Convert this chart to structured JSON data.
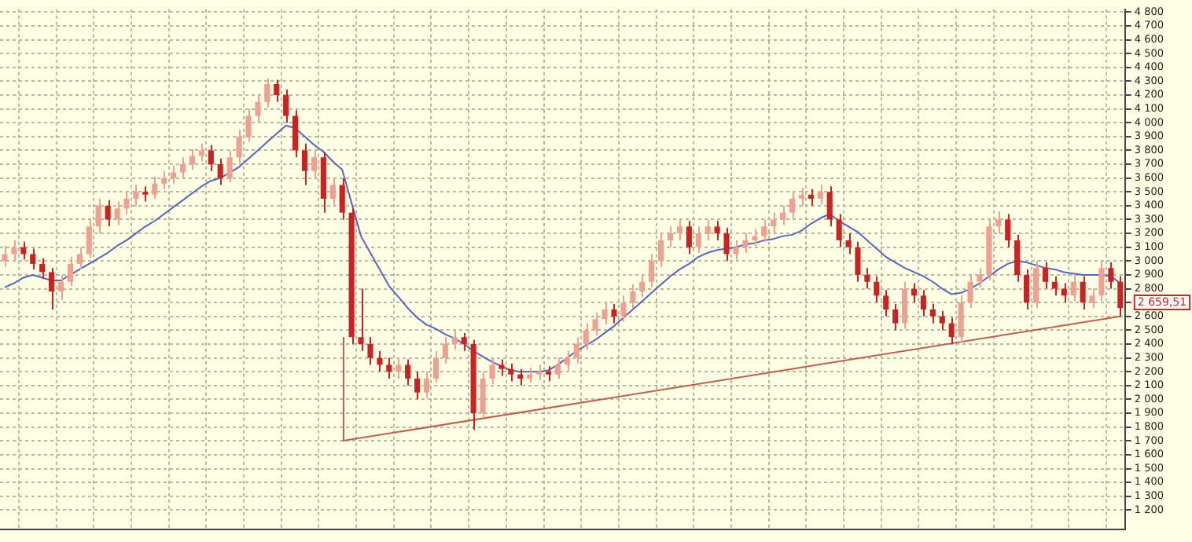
{
  "chart_data": {
    "type": "candlestick",
    "colors": [
      "#f0a090",
      "#f0a090",
      "#cc2222",
      "#cc2222",
      "#cc2222",
      "#cc2222",
      "#f0a090",
      "#f0a090",
      "#f0a090",
      "#f0a090",
      "#f0a090",
      "#cc2222",
      "#f0a090",
      "#f0a090",
      "#f0a090",
      "#cc2222",
      "#f0a090",
      "#f0a090",
      "#f0a090",
      "#f0a090",
      "#f0a090",
      "#f0a090",
      "#cc2222",
      "#cc2222",
      "#f0a090",
      "#f0a090",
      "#f0a090",
      "#f0a090",
      "#f0a090",
      "#cc2222",
      "#cc2222",
      "#cc2222",
      "#cc2222",
      "#f0a090",
      "#cc2222",
      "#f0a090",
      "#cc2222",
      "#cc2222",
      "#cc2222",
      "#cc2222",
      "#cc2222",
      "#cc2222",
      "#f0a090",
      "#cc2222",
      "#cc2222",
      "#f0a090",
      "#f0a090",
      "#f0a090",
      "#f0a090",
      "#cc2222",
      "#cc2222",
      "#f0a090",
      "#f0a090",
      "#cc2222",
      "#cc2222",
      "#cc2222",
      "#f0a090",
      "#f0a090",
      "#cc2222",
      "#f0a090",
      "#f0a090",
      "#f0a090",
      "#f0a090",
      "#f0a090",
      "#f0a090",
      "#cc2222",
      "#f0a090",
      "#f0a090",
      "#f0a090",
      "#f0a090",
      "#f0a090",
      "#f0a090",
      "#f0a090",
      "#cc2222",
      "#f0a090",
      "#f0a090",
      "#cc2222",
      "#cc2222",
      "#f0a090",
      "#f0a090",
      "#f0a090",
      "#f0a090",
      "#f0a090",
      "#f0a090",
      "#f0a090",
      "#f0a090",
      "#cc2222",
      "#f0a090",
      "#cc2222",
      "#cc2222",
      "#cc2222",
      "#cc2222",
      "#cc2222",
      "#cc2222",
      "#cc2222",
      "#cc2222",
      "#f0a090",
      "#cc2222",
      "#cc2222",
      "#cc2222",
      "#cc2222",
      "#cc2222",
      "#f0a090",
      "#f0a090",
      "#f0a090",
      "#f0a090",
      "#f0a090",
      "#cc2222",
      "#cc2222",
      "#cc2222",
      "#f0a090",
      "#cc2222",
      "#cc2222",
      "#cc2222",
      "#f0a090",
      "#cc2222",
      "#f0a090",
      "#f0a090",
      "#cc2222",
      "#cc2222"
    ],
    "categories": [
      null,
      null,
      null,
      null,
      null,
      null,
      null,
      null,
      null,
      null,
      null,
      null,
      null,
      null,
      null,
      null,
      null,
      null,
      null,
      null,
      null,
      null,
      null,
      null,
      null,
      null,
      null,
      null,
      null,
      null,
      null,
      null,
      null,
      null,
      null,
      null,
      null,
      null,
      null,
      null,
      null,
      null,
      null,
      null,
      null,
      null,
      null,
      null,
      null,
      null,
      null,
      null,
      null,
      null,
      null,
      null,
      null,
      null,
      null,
      null,
      null,
      null,
      null,
      null,
      null,
      null,
      null,
      null,
      null,
      null,
      null,
      null,
      null,
      null,
      null,
      null,
      null,
      null,
      null,
      null,
      null,
      null,
      null,
      null,
      null,
      null,
      null,
      null,
      null,
      null,
      null,
      null,
      null,
      null,
      null,
      null,
      null,
      null,
      null,
      null,
      null,
      null,
      null,
      null,
      null,
      null,
      null,
      null,
      null,
      null,
      null,
      null,
      null,
      null,
      null,
      null,
      null,
      null,
      null,
      null
    ],
    "ohlc": [
      [
        3000,
        3110,
        2960,
        3050
      ],
      [
        3050,
        3150,
        3000,
        3100
      ],
      [
        3100,
        3140,
        3010,
        3050
      ],
      [
        3050,
        3090,
        2940,
        2980
      ],
      [
        2980,
        3020,
        2870,
        2920
      ],
      [
        2920,
        2950,
        2650,
        2780
      ],
      [
        2780,
        2900,
        2720,
        2850
      ],
      [
        2850,
        3030,
        2820,
        2980
      ],
      [
        2980,
        3100,
        2940,
        3050
      ],
      [
        3050,
        3300,
        3020,
        3250
      ],
      [
        3250,
        3450,
        3200,
        3400
      ],
      [
        3400,
        3440,
        3250,
        3300
      ],
      [
        3300,
        3430,
        3260,
        3380
      ],
      [
        3380,
        3500,
        3340,
        3450
      ],
      [
        3450,
        3550,
        3400,
        3500
      ],
      [
        3500,
        3540,
        3430,
        3480
      ],
      [
        3480,
        3610,
        3450,
        3560
      ],
      [
        3560,
        3650,
        3520,
        3600
      ],
      [
        3600,
        3690,
        3560,
        3640
      ],
      [
        3640,
        3750,
        3600,
        3700
      ],
      [
        3700,
        3810,
        3660,
        3760
      ],
      [
        3760,
        3850,
        3720,
        3800
      ],
      [
        3800,
        3840,
        3650,
        3700
      ],
      [
        3700,
        3740,
        3550,
        3600
      ],
      [
        3600,
        3800,
        3570,
        3750
      ],
      [
        3750,
        3950,
        3710,
        3900
      ],
      [
        3900,
        4100,
        3860,
        4050
      ],
      [
        4050,
        4200,
        4000,
        4150
      ],
      [
        4150,
        4320,
        4110,
        4280
      ],
      [
        4280,
        4310,
        4150,
        4200
      ],
      [
        4200,
        4240,
        4000,
        4050
      ],
      [
        4050,
        4090,
        3750,
        3800
      ],
      [
        3800,
        3850,
        3550,
        3650
      ],
      [
        3650,
        3800,
        3600,
        3750
      ],
      [
        3750,
        3790,
        3350,
        3450
      ],
      [
        3450,
        3600,
        3400,
        3550
      ],
      [
        3550,
        3600,
        3300,
        3350
      ],
      [
        3350,
        3380,
        2400,
        2450
      ],
      [
        2450,
        2800,
        2350,
        2400
      ],
      [
        2400,
        2450,
        2250,
        2300
      ],
      [
        2300,
        2350,
        2200,
        2250
      ],
      [
        2250,
        2300,
        2150,
        2200
      ],
      [
        2200,
        2300,
        2150,
        2250
      ],
      [
        2250,
        2290,
        2100,
        2150
      ],
      [
        2150,
        2200,
        2000,
        2050
      ],
      [
        2050,
        2200,
        2010,
        2150
      ],
      [
        2150,
        2350,
        2120,
        2300
      ],
      [
        2300,
        2450,
        2260,
        2400
      ],
      [
        2400,
        2500,
        2360,
        2450
      ],
      [
        2450,
        2480,
        2350,
        2400
      ],
      [
        2400,
        2430,
        1780,
        1900
      ],
      [
        1900,
        2200,
        1870,
        2150
      ],
      [
        2150,
        2300,
        2110,
        2250
      ],
      [
        2250,
        2290,
        2170,
        2220
      ],
      [
        2220,
        2260,
        2130,
        2180
      ],
      [
        2180,
        2220,
        2100,
        2150
      ],
      [
        2150,
        2230,
        2120,
        2180
      ],
      [
        2180,
        2250,
        2140,
        2200
      ],
      [
        2200,
        2240,
        2130,
        2180
      ],
      [
        2180,
        2300,
        2150,
        2250
      ],
      [
        2250,
        2350,
        2210,
        2300
      ],
      [
        2300,
        2450,
        2260,
        2400
      ],
      [
        2400,
        2550,
        2360,
        2500
      ],
      [
        2500,
        2630,
        2460,
        2580
      ],
      [
        2580,
        2700,
        2540,
        2650
      ],
      [
        2650,
        2690,
        2550,
        2600
      ],
      [
        2600,
        2750,
        2560,
        2700
      ],
      [
        2700,
        2830,
        2660,
        2780
      ],
      [
        2780,
        2900,
        2740,
        2850
      ],
      [
        2850,
        3050,
        2810,
        3000
      ],
      [
        3000,
        3200,
        2960,
        3150
      ],
      [
        3150,
        3250,
        3100,
        3200
      ],
      [
        3200,
        3300,
        3150,
        3250
      ],
      [
        3250,
        3290,
        3050,
        3100
      ],
      [
        3100,
        3250,
        3060,
        3200
      ],
      [
        3200,
        3300,
        3150,
        3250
      ],
      [
        3250,
        3290,
        3150,
        3200
      ],
      [
        3200,
        3240,
        3000,
        3050
      ],
      [
        3050,
        3150,
        3010,
        3100
      ],
      [
        3100,
        3200,
        3060,
        3150
      ],
      [
        3150,
        3230,
        3110,
        3180
      ],
      [
        3180,
        3300,
        3140,
        3250
      ],
      [
        3250,
        3350,
        3200,
        3300
      ],
      [
        3300,
        3400,
        3260,
        3350
      ],
      [
        3350,
        3500,
        3310,
        3450
      ],
      [
        3450,
        3530,
        3400,
        3480
      ],
      [
        3480,
        3520,
        3400,
        3450
      ],
      [
        3450,
        3550,
        3410,
        3500
      ],
      [
        3500,
        3540,
        3250,
        3300
      ],
      [
        3300,
        3340,
        3100,
        3150
      ],
      [
        3150,
        3200,
        3050,
        3100
      ],
      [
        3100,
        3140,
        2850,
        2900
      ],
      [
        2900,
        2950,
        2800,
        2850
      ],
      [
        2850,
        2890,
        2700,
        2750
      ],
      [
        2750,
        2790,
        2600,
        2650
      ],
      [
        2650,
        2690,
        2500,
        2550
      ],
      [
        2550,
        2850,
        2510,
        2800
      ],
      [
        2800,
        2840,
        2700,
        2750
      ],
      [
        2750,
        2790,
        2600,
        2650
      ],
      [
        2650,
        2690,
        2550,
        2600
      ],
      [
        2600,
        2640,
        2500,
        2550
      ],
      [
        2550,
        2590,
        2400,
        2450
      ],
      [
        2450,
        2750,
        2410,
        2700
      ],
      [
        2700,
        2900,
        2660,
        2850
      ],
      [
        2850,
        2950,
        2810,
        2900
      ],
      [
        2900,
        3300,
        2860,
        3250
      ],
      [
        3250,
        3360,
        3200,
        3300
      ],
      [
        3300,
        3340,
        3100,
        3150
      ],
      [
        3150,
        3190,
        2850,
        2900
      ],
      [
        2900,
        2940,
        2650,
        2700
      ],
      [
        2700,
        3000,
        2660,
        2950
      ],
      [
        2950,
        2990,
        2800,
        2850
      ],
      [
        2850,
        2890,
        2750,
        2800
      ],
      [
        2800,
        2840,
        2700,
        2750
      ],
      [
        2750,
        2900,
        2710,
        2850
      ],
      [
        2850,
        2890,
        2650,
        2700
      ],
      [
        2700,
        2800,
        2660,
        2750
      ],
      [
        2750,
        3000,
        2710,
        2950
      ],
      [
        2950,
        2990,
        2800,
        2850
      ],
      [
        2850,
        2890,
        2600,
        2660
      ]
    ],
    "series": [
      {
        "type": "line",
        "color": "#5566bb",
        "values": [
          2810,
          2840,
          2880,
          2900,
          2880,
          2860,
          2860,
          2900,
          2940,
          2980,
          3020,
          3060,
          3110,
          3150,
          3200,
          3250,
          3290,
          3340,
          3390,
          3440,
          3490,
          3540,
          3580,
          3600,
          3640,
          3680,
          3740,
          3800,
          3860,
          3920,
          3980,
          3960,
          3900,
          3840,
          3790,
          3720,
          3660,
          3420,
          3180,
          3060,
          2940,
          2820,
          2740,
          2660,
          2590,
          2540,
          2510,
          2470,
          2440,
          2400,
          2350,
          2310,
          2270,
          2240,
          2210,
          2200,
          2200,
          2200,
          2210,
          2250,
          2300,
          2350,
          2390,
          2430,
          2480,
          2530,
          2590,
          2650,
          2710,
          2770,
          2830,
          2890,
          2940,
          2980,
          3030,
          3060,
          3080,
          3090,
          3100,
          3120,
          3130,
          3150,
          3160,
          3180,
          3190,
          3220,
          3270,
          3310,
          3340,
          3290,
          3250,
          3210,
          3150,
          3090,
          3030,
          2990,
          2950,
          2920,
          2890,
          2850,
          2800,
          2760,
          2770,
          2800,
          2840,
          2890,
          2940,
          2980,
          3000,
          2990,
          2970,
          2950,
          2940,
          2920,
          2910,
          2900,
          2900,
          2900,
          2890,
          2840
        ]
      },
      {
        "type": "line",
        "color": "#c0604a",
        "values": [
          null,
          null,
          null,
          null,
          null,
          null,
          null,
          null,
          null,
          null,
          null,
          null,
          null,
          null,
          null,
          null,
          null,
          null,
          null,
          null,
          null,
          null,
          null,
          null,
          null,
          null,
          null,
          null,
          null,
          null,
          null,
          null,
          null,
          null,
          null,
          null,
          1700,
          null,
          null,
          null,
          null,
          null,
          null,
          null,
          null,
          null,
          null,
          null,
          null,
          null,
          null,
          null,
          null,
          null,
          null,
          null,
          null,
          null,
          null,
          null,
          null,
          null,
          null,
          null,
          null,
          null,
          null,
          null,
          null,
          null,
          null,
          null,
          null,
          null,
          null,
          null,
          null,
          null,
          null,
          null,
          null,
          null,
          null,
          null,
          null,
          null,
          null,
          null,
          null,
          null,
          null,
          null,
          null,
          null,
          null,
          null,
          null,
          null,
          null,
          null,
          null,
          null,
          null,
          null,
          null,
          null,
          null,
          null,
          null,
          null,
          null,
          null,
          null,
          null,
          null,
          null,
          null,
          null,
          null,
          2600
        ],
        "errors": [
          null,
          null,
          null,
          null,
          null,
          null,
          null,
          null,
          null,
          null,
          null,
          null,
          null,
          null,
          null,
          null,
          null,
          null,
          null,
          null,
          null,
          null,
          null,
          null,
          null,
          null,
          null,
          null,
          null,
          null,
          null,
          null,
          null,
          null,
          null,
          null,
          [
            1700,
            2450
          ],
          null,
          null,
          null,
          null,
          null,
          null,
          null,
          null,
          null,
          null,
          null,
          null,
          null,
          null,
          null,
          null,
          null,
          null,
          null,
          null,
          null,
          null,
          null,
          null,
          null,
          null,
          null,
          null,
          null,
          null,
          null,
          null,
          null,
          null,
          null,
          null,
          null,
          null,
          null,
          null,
          null,
          null,
          null,
          null,
          null,
          null,
          null,
          null,
          null,
          null,
          null,
          null,
          null,
          null,
          null,
          null,
          null,
          null,
          null,
          null,
          null,
          null,
          null,
          null,
          null,
          null,
          null,
          null,
          null,
          null,
          null,
          null,
          null,
          null,
          null,
          null,
          null,
          null,
          null,
          null,
          null,
          null,
          null
        ]
      }
    ],
    "ylim": [
      1060,
      4820
    ],
    "yticks": [
      {
        "value": 1200,
        "label": "1 200"
      },
      {
        "value": 1300,
        "label": "1 300"
      },
      {
        "value": 1400,
        "label": "1 400"
      },
      {
        "value": 1500,
        "label": "1 500"
      },
      {
        "value": 1600,
        "label": "1 600"
      },
      {
        "value": 1700,
        "label": "1 700"
      },
      {
        "value": 1800,
        "label": "1 800"
      },
      {
        "value": 1900,
        "label": "1 900"
      },
      {
        "value": 2000,
        "label": "2 000"
      },
      {
        "value": 2100,
        "label": "2 100"
      },
      {
        "value": 2200,
        "label": "2 200"
      },
      {
        "value": 2300,
        "label": "2 300"
      },
      {
        "value": 2400,
        "label": "2 400"
      },
      {
        "value": 2500,
        "label": "2 500"
      },
      {
        "value": 2600,
        "label": "2 600"
      },
      {
        "value": 2700,
        "label": null
      },
      {
        "value": 2800,
        "label": "2 800"
      },
      {
        "value": 2900,
        "label": "2 900"
      },
      {
        "value": 3000,
        "label": "3 000"
      },
      {
        "value": 3100,
        "label": "3 100"
      },
      {
        "value": 3200,
        "label": "3 200"
      },
      {
        "value": 3300,
        "label": "3 300"
      },
      {
        "value": 3400,
        "label": "3 400"
      },
      {
        "value": 3500,
        "label": "3 500"
      },
      {
        "value": 3600,
        "label": "3 600"
      },
      {
        "value": 3700,
        "label": "3 700"
      },
      {
        "value": 3800,
        "label": "3 800"
      },
      {
        "value": 3900,
        "label": "3 900"
      },
      {
        "value": 4000,
        "label": "4 000"
      },
      {
        "value": 4100,
        "label": "4 100"
      },
      {
        "value": 4200,
        "label": "4 200"
      },
      {
        "value": 4300,
        "label": "4 300"
      },
      {
        "value": 4400,
        "label": "4 400"
      },
      {
        "value": 4500,
        "label": "4 500"
      },
      {
        "value": 4600,
        "label": "4 600"
      },
      {
        "value": 4700,
        "label": "4 700"
      },
      {
        "value": 4800,
        "label": "4 800"
      }
    ],
    "grid": true,
    "tick_labels": "y",
    "marker": "none",
    "annotations": [
      "2 659,51"
    ]
  }
}
